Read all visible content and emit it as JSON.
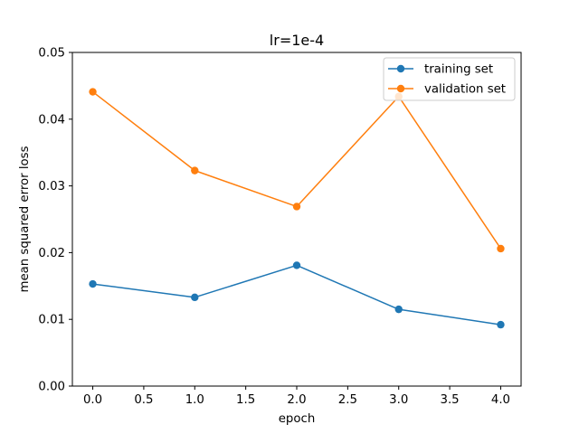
{
  "chart_data": {
    "type": "line",
    "title": "lr=1e-4",
    "xlabel": "epoch",
    "ylabel": "mean squared error loss",
    "x": [
      0,
      1,
      2,
      3,
      4
    ],
    "xlim": [
      -0.2,
      4.2
    ],
    "ylim": [
      0.0,
      0.05
    ],
    "xticks": [
      0.0,
      0.5,
      1.0,
      1.5,
      2.0,
      2.5,
      3.0,
      3.5,
      4.0
    ],
    "xtick_labels": [
      "0.0",
      "0.5",
      "1.0",
      "1.5",
      "2.0",
      "2.5",
      "3.0",
      "3.5",
      "4.0"
    ],
    "yticks": [
      0.0,
      0.01,
      0.02,
      0.03,
      0.04,
      0.05
    ],
    "ytick_labels": [
      "0.00",
      "0.01",
      "0.02",
      "0.03",
      "0.04",
      "0.05"
    ],
    "grid": false,
    "legend_position": "top-right",
    "series": [
      {
        "name": "training set",
        "color": "#1f77b4",
        "marker": "circle",
        "values": [
          0.0153,
          0.0133,
          0.0181,
          0.0115,
          0.0092
        ]
      },
      {
        "name": "validation set",
        "color": "#ff7f0e",
        "marker": "circle",
        "values": [
          0.0441,
          0.0323,
          0.0269,
          0.0434,
          0.0206
        ]
      }
    ]
  }
}
